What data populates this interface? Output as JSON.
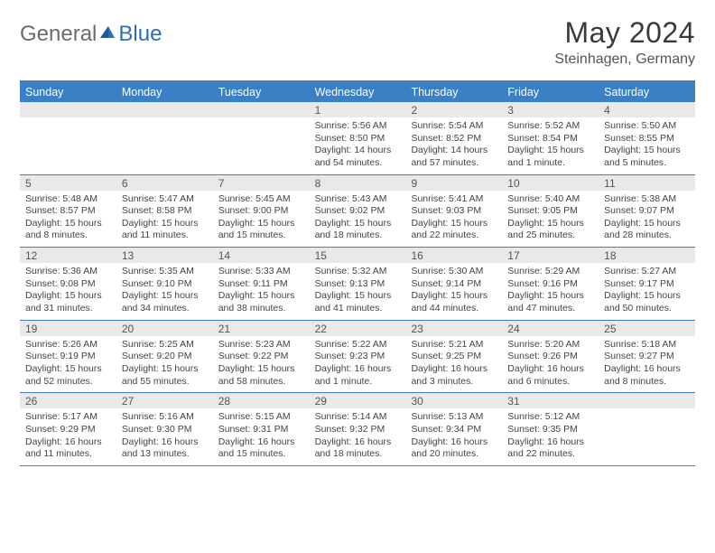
{
  "logo": {
    "text1": "General",
    "text2": "Blue"
  },
  "title": "May 2024",
  "location": "Steinhagen, Germany",
  "colors": {
    "header_bg": "#3b7fc4",
    "daynum_bg": "#e9e9e9",
    "border": "#3b7fc4",
    "text": "#3a3a3a"
  },
  "day_names": [
    "Sunday",
    "Monday",
    "Tuesday",
    "Wednesday",
    "Thursday",
    "Friday",
    "Saturday"
  ],
  "weeks": [
    [
      {
        "n": "",
        "sr": "",
        "ss": "",
        "dl": ""
      },
      {
        "n": "",
        "sr": "",
        "ss": "",
        "dl": ""
      },
      {
        "n": "",
        "sr": "",
        "ss": "",
        "dl": ""
      },
      {
        "n": "1",
        "sr": "Sunrise: 5:56 AM",
        "ss": "Sunset: 8:50 PM",
        "dl": "Daylight: 14 hours and 54 minutes."
      },
      {
        "n": "2",
        "sr": "Sunrise: 5:54 AM",
        "ss": "Sunset: 8:52 PM",
        "dl": "Daylight: 14 hours and 57 minutes."
      },
      {
        "n": "3",
        "sr": "Sunrise: 5:52 AM",
        "ss": "Sunset: 8:54 PM",
        "dl": "Daylight: 15 hours and 1 minute."
      },
      {
        "n": "4",
        "sr": "Sunrise: 5:50 AM",
        "ss": "Sunset: 8:55 PM",
        "dl": "Daylight: 15 hours and 5 minutes."
      }
    ],
    [
      {
        "n": "5",
        "sr": "Sunrise: 5:48 AM",
        "ss": "Sunset: 8:57 PM",
        "dl": "Daylight: 15 hours and 8 minutes."
      },
      {
        "n": "6",
        "sr": "Sunrise: 5:47 AM",
        "ss": "Sunset: 8:58 PM",
        "dl": "Daylight: 15 hours and 11 minutes."
      },
      {
        "n": "7",
        "sr": "Sunrise: 5:45 AM",
        "ss": "Sunset: 9:00 PM",
        "dl": "Daylight: 15 hours and 15 minutes."
      },
      {
        "n": "8",
        "sr": "Sunrise: 5:43 AM",
        "ss": "Sunset: 9:02 PM",
        "dl": "Daylight: 15 hours and 18 minutes."
      },
      {
        "n": "9",
        "sr": "Sunrise: 5:41 AM",
        "ss": "Sunset: 9:03 PM",
        "dl": "Daylight: 15 hours and 22 minutes."
      },
      {
        "n": "10",
        "sr": "Sunrise: 5:40 AM",
        "ss": "Sunset: 9:05 PM",
        "dl": "Daylight: 15 hours and 25 minutes."
      },
      {
        "n": "11",
        "sr": "Sunrise: 5:38 AM",
        "ss": "Sunset: 9:07 PM",
        "dl": "Daylight: 15 hours and 28 minutes."
      }
    ],
    [
      {
        "n": "12",
        "sr": "Sunrise: 5:36 AM",
        "ss": "Sunset: 9:08 PM",
        "dl": "Daylight: 15 hours and 31 minutes."
      },
      {
        "n": "13",
        "sr": "Sunrise: 5:35 AM",
        "ss": "Sunset: 9:10 PM",
        "dl": "Daylight: 15 hours and 34 minutes."
      },
      {
        "n": "14",
        "sr": "Sunrise: 5:33 AM",
        "ss": "Sunset: 9:11 PM",
        "dl": "Daylight: 15 hours and 38 minutes."
      },
      {
        "n": "15",
        "sr": "Sunrise: 5:32 AM",
        "ss": "Sunset: 9:13 PM",
        "dl": "Daylight: 15 hours and 41 minutes."
      },
      {
        "n": "16",
        "sr": "Sunrise: 5:30 AM",
        "ss": "Sunset: 9:14 PM",
        "dl": "Daylight: 15 hours and 44 minutes."
      },
      {
        "n": "17",
        "sr": "Sunrise: 5:29 AM",
        "ss": "Sunset: 9:16 PM",
        "dl": "Daylight: 15 hours and 47 minutes."
      },
      {
        "n": "18",
        "sr": "Sunrise: 5:27 AM",
        "ss": "Sunset: 9:17 PM",
        "dl": "Daylight: 15 hours and 50 minutes."
      }
    ],
    [
      {
        "n": "19",
        "sr": "Sunrise: 5:26 AM",
        "ss": "Sunset: 9:19 PM",
        "dl": "Daylight: 15 hours and 52 minutes."
      },
      {
        "n": "20",
        "sr": "Sunrise: 5:25 AM",
        "ss": "Sunset: 9:20 PM",
        "dl": "Daylight: 15 hours and 55 minutes."
      },
      {
        "n": "21",
        "sr": "Sunrise: 5:23 AM",
        "ss": "Sunset: 9:22 PM",
        "dl": "Daylight: 15 hours and 58 minutes."
      },
      {
        "n": "22",
        "sr": "Sunrise: 5:22 AM",
        "ss": "Sunset: 9:23 PM",
        "dl": "Daylight: 16 hours and 1 minute."
      },
      {
        "n": "23",
        "sr": "Sunrise: 5:21 AM",
        "ss": "Sunset: 9:25 PM",
        "dl": "Daylight: 16 hours and 3 minutes."
      },
      {
        "n": "24",
        "sr": "Sunrise: 5:20 AM",
        "ss": "Sunset: 9:26 PM",
        "dl": "Daylight: 16 hours and 6 minutes."
      },
      {
        "n": "25",
        "sr": "Sunrise: 5:18 AM",
        "ss": "Sunset: 9:27 PM",
        "dl": "Daylight: 16 hours and 8 minutes."
      }
    ],
    [
      {
        "n": "26",
        "sr": "Sunrise: 5:17 AM",
        "ss": "Sunset: 9:29 PM",
        "dl": "Daylight: 16 hours and 11 minutes."
      },
      {
        "n": "27",
        "sr": "Sunrise: 5:16 AM",
        "ss": "Sunset: 9:30 PM",
        "dl": "Daylight: 16 hours and 13 minutes."
      },
      {
        "n": "28",
        "sr": "Sunrise: 5:15 AM",
        "ss": "Sunset: 9:31 PM",
        "dl": "Daylight: 16 hours and 15 minutes."
      },
      {
        "n": "29",
        "sr": "Sunrise: 5:14 AM",
        "ss": "Sunset: 9:32 PM",
        "dl": "Daylight: 16 hours and 18 minutes."
      },
      {
        "n": "30",
        "sr": "Sunrise: 5:13 AM",
        "ss": "Sunset: 9:34 PM",
        "dl": "Daylight: 16 hours and 20 minutes."
      },
      {
        "n": "31",
        "sr": "Sunrise: 5:12 AM",
        "ss": "Sunset: 9:35 PM",
        "dl": "Daylight: 16 hours and 22 minutes."
      },
      {
        "n": "",
        "sr": "",
        "ss": "",
        "dl": ""
      }
    ]
  ]
}
